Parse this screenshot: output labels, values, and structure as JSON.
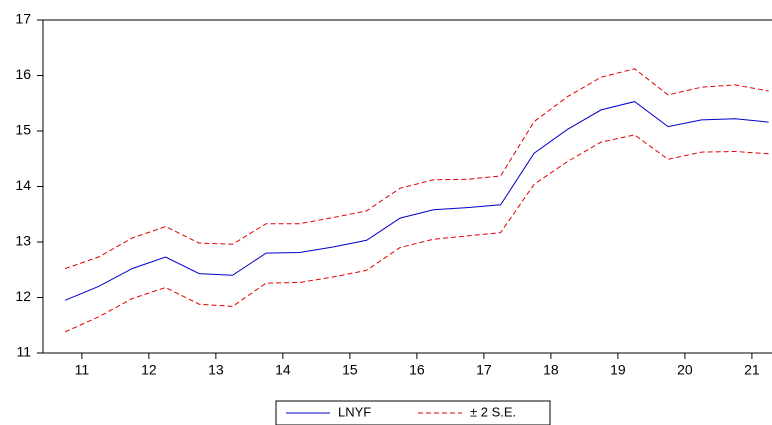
{
  "chart_data": {
    "type": "line",
    "x": [
      10.75,
      11.25,
      11.75,
      12.25,
      12.75,
      13.25,
      13.75,
      14.25,
      14.75,
      15.25,
      15.75,
      16.25,
      16.75,
      17.25,
      17.75,
      18.25,
      18.75,
      19.25,
      19.75,
      20.25,
      20.75,
      21.25
    ],
    "xlim": [
      10.42,
      21.3
    ],
    "xticks": [
      11,
      12,
      13,
      14,
      15,
      16,
      17,
      18,
      19,
      20,
      21
    ],
    "ylim": [
      11,
      17
    ],
    "yticks": [
      11,
      12,
      13,
      14,
      15,
      16,
      17
    ],
    "series": [
      {
        "name": "LNYF",
        "color": "#0000cc",
        "dashed": false,
        "values": [
          11.95,
          12.2,
          12.52,
          12.73,
          12.43,
          12.4,
          12.8,
          12.81,
          12.91,
          13.03,
          13.43,
          13.58,
          13.62,
          13.67,
          14.6,
          15.03,
          15.38,
          15.53,
          15.08,
          15.2,
          15.22,
          15.16
        ]
      },
      {
        "name": "± 2 S.E.",
        "color": "#e00000",
        "dashed": true,
        "upper": [
          12.52,
          12.73,
          13.07,
          13.28,
          12.98,
          12.96,
          13.33,
          13.33,
          13.44,
          13.56,
          13.97,
          14.12,
          14.13,
          14.19,
          15.17,
          15.62,
          15.97,
          16.12,
          15.65,
          15.79,
          15.83,
          15.72
        ],
        "lower": [
          11.38,
          11.65,
          11.98,
          12.18,
          11.88,
          11.84,
          12.26,
          12.27,
          12.37,
          12.49,
          12.9,
          13.05,
          13.11,
          13.17,
          14.04,
          14.45,
          14.8,
          14.93,
          14.49,
          14.62,
          14.63,
          14.59
        ]
      }
    ]
  }
}
